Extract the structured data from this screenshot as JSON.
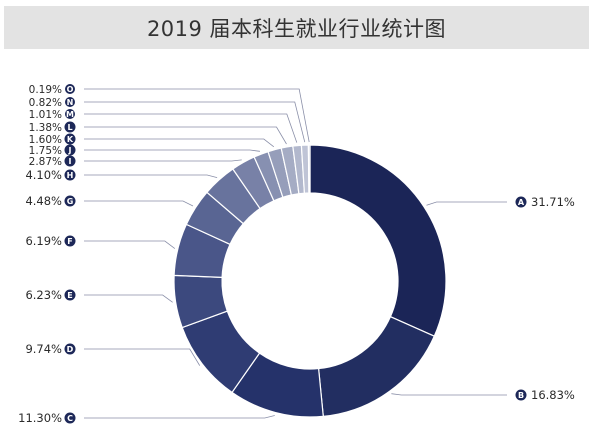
{
  "title": "2019 届本科生就业行业统计图",
  "colors": {
    "title_bg": "#e3e3e3",
    "leader": "#8a8fa8",
    "badge": "#1d2858"
  },
  "chart_data": {
    "type": "donut",
    "title": "2019 届本科生就业行业统计图",
    "unit": "%",
    "slices": [
      {
        "key": "A",
        "label": "31.71%",
        "value": 31.71,
        "color": "#1b2557"
      },
      {
        "key": "B",
        "label": "16.83%",
        "value": 16.83,
        "color": "#222e61"
      },
      {
        "key": "C",
        "label": "11.30%",
        "value": 11.3,
        "color": "#25326a"
      },
      {
        "key": "D",
        "label": "9.74%",
        "value": 9.74,
        "color": "#2f3c73"
      },
      {
        "key": "E",
        "label": "6.23%",
        "value": 6.23,
        "color": "#3c497e"
      },
      {
        "key": "F",
        "label": "6.19%",
        "value": 6.19,
        "color": "#4a5689"
      },
      {
        "key": "G",
        "label": "4.48%",
        "value": 4.48,
        "color": "#596593"
      },
      {
        "key": "H",
        "label": "4.10%",
        "value": 4.1,
        "color": "#68739d"
      },
      {
        "key": "I",
        "label": "2.87%",
        "value": 2.87,
        "color": "#7881a7"
      },
      {
        "key": "J",
        "label": "1.75%",
        "value": 1.75,
        "color": "#8790b1"
      },
      {
        "key": "K",
        "label": "1.60%",
        "value": 1.6,
        "color": "#969eba"
      },
      {
        "key": "L",
        "label": "1.38%",
        "value": 1.38,
        "color": "#a5acc4"
      },
      {
        "key": "M",
        "label": "1.01%",
        "value": 1.01,
        "color": "#b2b8cd"
      },
      {
        "key": "N",
        "label": "0.82%",
        "value": 0.82,
        "color": "#bfc4d6"
      },
      {
        "key": "O",
        "label": "0.19%",
        "value": 0.19,
        "color": "#cbcfdf"
      }
    ]
  }
}
